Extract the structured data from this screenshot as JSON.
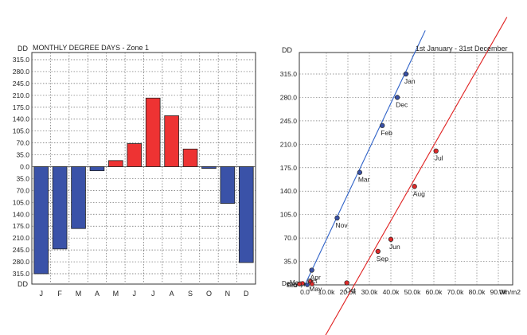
{
  "chart_data": [
    {
      "type": "bar",
      "title": "MONTHLY DEGREE DAYS - Zone 1",
      "ylabel": "DD",
      "ylim": [
        -315,
        315
      ],
      "y_tick_labels": [
        "315.0",
        "280.0",
        "245.0",
        "210.0",
        "175.0",
        "140.0",
        "105.0",
        "70.0",
        "35.0",
        "0.0",
        "35.0",
        "70.0",
        "105.0",
        "140.0",
        "175.0",
        "210.0",
        "245.0",
        "280.0",
        "315.0"
      ],
      "y_tick_values": [
        315,
        280,
        245,
        210,
        175,
        140,
        105,
        70,
        35,
        0,
        -35,
        -70,
        -105,
        -140,
        -175,
        -210,
        -245,
        -280,
        -315
      ],
      "categories": [
        "J",
        "F",
        "M",
        "A",
        "M",
        "J",
        "J",
        "A",
        "S",
        "O",
        "N",
        "D"
      ],
      "series": [
        {
          "values": [
            -315,
            -242,
            -182,
            -12,
            18,
            68,
            202,
            150,
            52,
            -5,
            -108,
            -282
          ]
        }
      ],
      "colors": {
        "positive": "#ee3333",
        "negative": "#3a52a8",
        "grid": "#666666"
      },
      "grid": true
    },
    {
      "type": "scatter",
      "title": "1st January - 31st December",
      "ylabel": "DD",
      "xlabel": "Wh/m2",
      "xlim": [
        0,
        90000
      ],
      "ylim": [
        0,
        350
      ],
      "x_tick_labels": [
        "0.0",
        "10.0k",
        "20.0k",
        "30.0k",
        "40.0k",
        "50.0k",
        "60.0k",
        "70.0k",
        "80.0k",
        "90.0k"
      ],
      "x_tick_values": [
        0,
        10000,
        20000,
        30000,
        40000,
        50000,
        60000,
        70000,
        80000,
        90000
      ],
      "y_tick_labels": [
        "0.0",
        "35.0",
        "70.0",
        "105.0",
        "140.0",
        "175.0",
        "210.0",
        "245.0",
        "280.0",
        "315.0"
      ],
      "y_tick_values": [
        0,
        35,
        70,
        105,
        140,
        175,
        210,
        245,
        280,
        315
      ],
      "series": [
        {
          "color": "#3a52a8",
          "line_color": "#2f62c8",
          "points": [
            {
              "label": "Jan",
              "x": 47000,
              "y": 315
            },
            {
              "label": "Feb",
              "x": 36000,
              "y": 238
            },
            {
              "label": "Mar",
              "x": 25500,
              "y": 168
            },
            {
              "label": "Apr",
              "x": 3200,
              "y": 22
            },
            {
              "label": "Nov",
              "x": 15000,
              "y": 100
            },
            {
              "label": "Dec",
              "x": 43000,
              "y": 280
            }
          ],
          "fit": [
            [
              0,
              0
            ],
            [
              56000,
              380
            ]
          ]
        },
        {
          "color": "#dd2a2a",
          "line_color": "#e02020",
          "points": [
            {
              "label": "May",
              "x": 2700,
              "y": 5
            },
            {
              "label": "Jun",
              "x": 40000,
              "y": 68
            },
            {
              "label": "Jul",
              "x": 61000,
              "y": 200
            },
            {
              "label": "Aug",
              "x": 51000,
              "y": 147
            },
            {
              "label": "Sep",
              "x": 34000,
              "y": 50
            },
            {
              "label": "Oct",
              "x": 19500,
              "y": 3
            }
          ],
          "fit": [
            [
              7000,
              -90
            ],
            [
              94000,
              400
            ]
          ]
        }
      ],
      "extra_labels": [
        "Dec",
        "Mar",
        "Feb",
        "Apr",
        "Oct"
      ],
      "grid": true
    }
  ]
}
